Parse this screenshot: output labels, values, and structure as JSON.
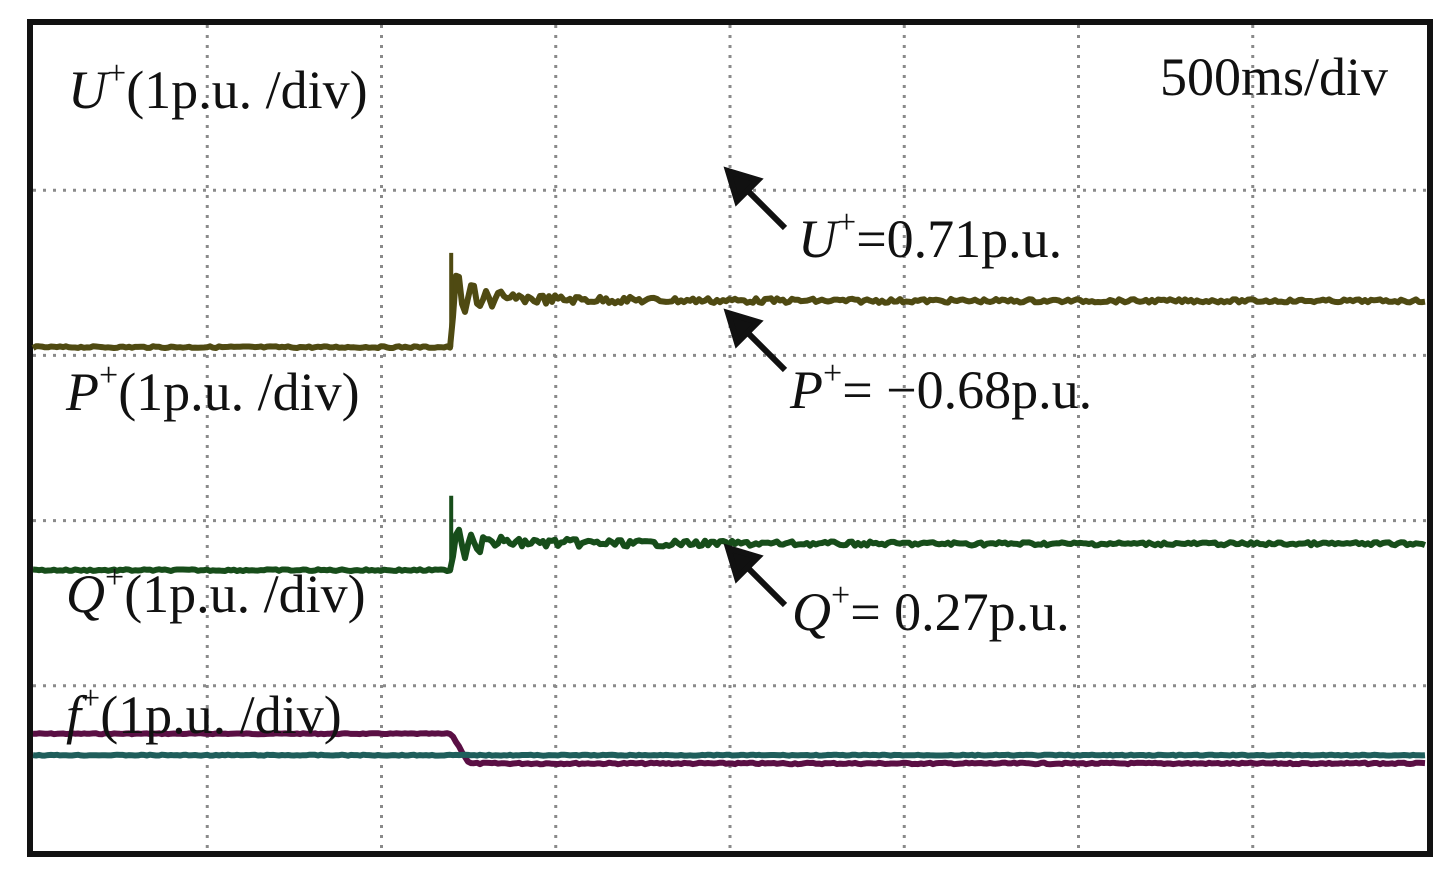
{
  "timebase": "500ms/div",
  "channel_labels": {
    "u": {
      "sym": "U",
      "sup": "+",
      "scale": "(1p.u. /div)"
    },
    "p": {
      "sym": "P",
      "sup": "+",
      "scale": "(1p.u. /div)"
    },
    "q": {
      "sym": "Q",
      "sup": "+",
      "scale": "(1p.u. /div)"
    },
    "f": {
      "sym": "f",
      "sup": "+",
      "scale": "(1p.u. /div)"
    }
  },
  "annotations": {
    "u": {
      "sym": "U",
      "sup": "+",
      "value": "=0.71p.u."
    },
    "p": {
      "sym": "P",
      "sup": "+",
      "value": "= −0.68p.u."
    },
    "q": {
      "sym": "Q",
      "sup": "+",
      "value": "= 0.27p.u."
    }
  },
  "colors": {
    "u": "#5a0f44",
    "p": "#4f4a12",
    "q": "#174d1a",
    "f": "#1f5e5b",
    "grid": "#8a8a8a",
    "frame": "#111111"
  },
  "chart_data": {
    "type": "line",
    "title": "",
    "xlabel": "500ms/div",
    "ylabel": "",
    "x_unit": "div",
    "xlim": [
      0,
      8
    ],
    "ylim": [
      0,
      5
    ],
    "grid": true,
    "step_time_div": 2.4,
    "series": [
      {
        "key": "u",
        "name": "U+",
        "scale": "1p.u./div",
        "before": 0.71,
        "after": 0.53,
        "final_label": 0.71,
        "transient": "none"
      },
      {
        "key": "p",
        "name": "P+",
        "scale": "1p.u./div",
        "before": 3.05,
        "after": 3.33,
        "final_label": -0.68,
        "transient": "spike"
      },
      {
        "key": "q",
        "name": "Q+",
        "scale": "1p.u./div",
        "before": 1.7,
        "after": 1.86,
        "final_label": 0.27,
        "transient": "spike"
      },
      {
        "key": "f",
        "name": "f+",
        "scale": "1p.u./div",
        "before": 0.58,
        "after": 0.58,
        "final_label": null,
        "transient": "none"
      }
    ]
  }
}
